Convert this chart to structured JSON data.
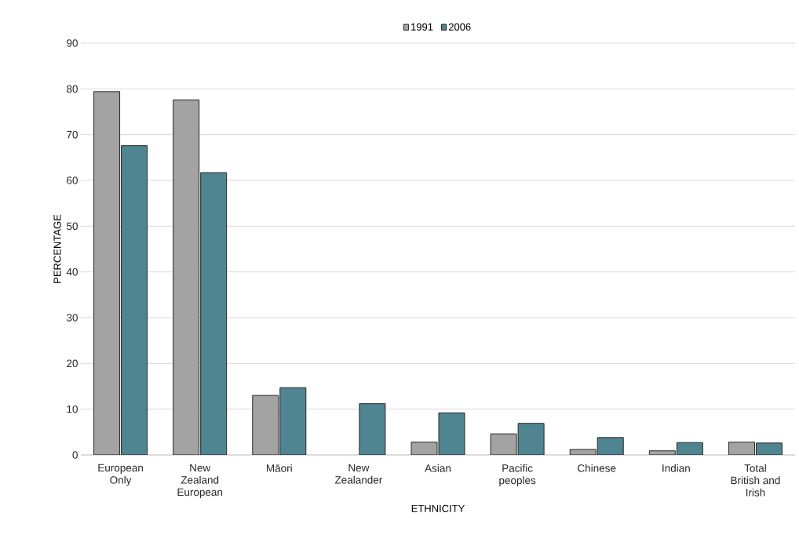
{
  "chart_data": {
    "type": "bar",
    "xlabel": "ETHNICITY",
    "ylabel": "PERCENTAGE",
    "categories": [
      "European Only",
      "New Zealand European",
      "Māori",
      "New Zealander",
      "Asian",
      "Pacific peoples",
      "Chinese",
      "Indian",
      "Total British and Irish"
    ],
    "series": [
      {
        "name": "1991",
        "color": "#a3a3a3",
        "values": [
          79.4,
          77.6,
          13.0,
          null,
          2.8,
          4.6,
          1.2,
          0.9,
          2.8
        ]
      },
      {
        "name": "2006",
        "color": "#4f8590",
        "values": [
          67.6,
          61.7,
          14.7,
          11.2,
          9.2,
          6.9,
          3.8,
          2.7,
          2.6
        ]
      }
    ],
    "ylim": [
      0,
      90
    ],
    "yticks": [
      0,
      10,
      20,
      30,
      40,
      50,
      60,
      70,
      80,
      90
    ],
    "grid": "y",
    "legend": "top"
  }
}
